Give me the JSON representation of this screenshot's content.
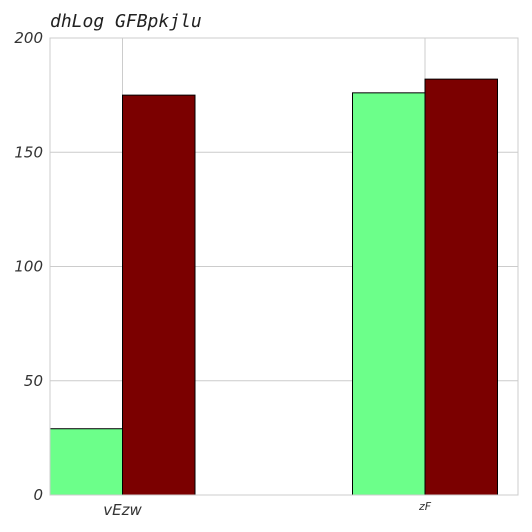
{
  "chart_data": {
    "type": "bar",
    "title": "dhLog GFBpkjlu",
    "xlabel": "",
    "ylabel": "",
    "categories": [
      "vEzw",
      "zF"
    ],
    "series": [
      {
        "values": [
          29,
          176
        ],
        "color": "#6cff8a"
      },
      {
        "values": [
          175,
          182
        ],
        "color": "#7b0000"
      }
    ],
    "ylim": [
      0,
      200
    ],
    "yticks": [
      0,
      50,
      100,
      150,
      200
    ],
    "grid": true,
    "legend": "none"
  }
}
